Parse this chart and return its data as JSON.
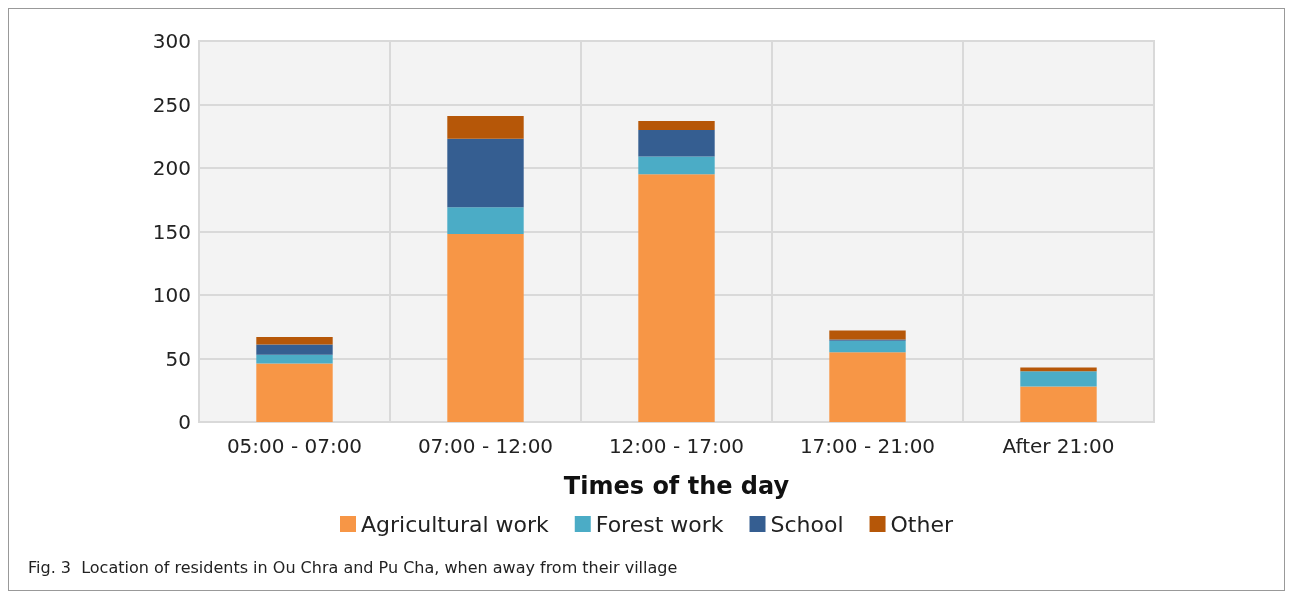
{
  "chart_data": {
    "type": "bar",
    "stacked": true,
    "xlabel": "Times of the day",
    "categories": [
      "05:00 - 07:00",
      "07:00 - 12:00",
      "12:00 - 17:00",
      "17:00 - 21:00",
      "After 21:00"
    ],
    "series": [
      {
        "name": "Agricultural work",
        "color": "#f79646",
        "values": [
          46,
          148,
          195,
          55,
          28
        ]
      },
      {
        "name": "Forest work",
        "color": "#4bacc6",
        "values": [
          7,
          21,
          14,
          9,
          12
        ]
      },
      {
        "name": "School",
        "color": "#355e91",
        "values": [
          8,
          54,
          21,
          1,
          0
        ]
      },
      {
        "name": "Other",
        "color": "#b65708",
        "values": [
          6,
          18,
          7,
          7,
          3
        ]
      }
    ],
    "ylim": [
      0,
      300
    ],
    "yticks": [
      0,
      50,
      100,
      150,
      200,
      250,
      300
    ],
    "grid": true,
    "legend": "bottom",
    "annotations": [
      "Fig. 3  Location of residents in Ou Chra and Pu Cha, when away from their village"
    ]
  }
}
